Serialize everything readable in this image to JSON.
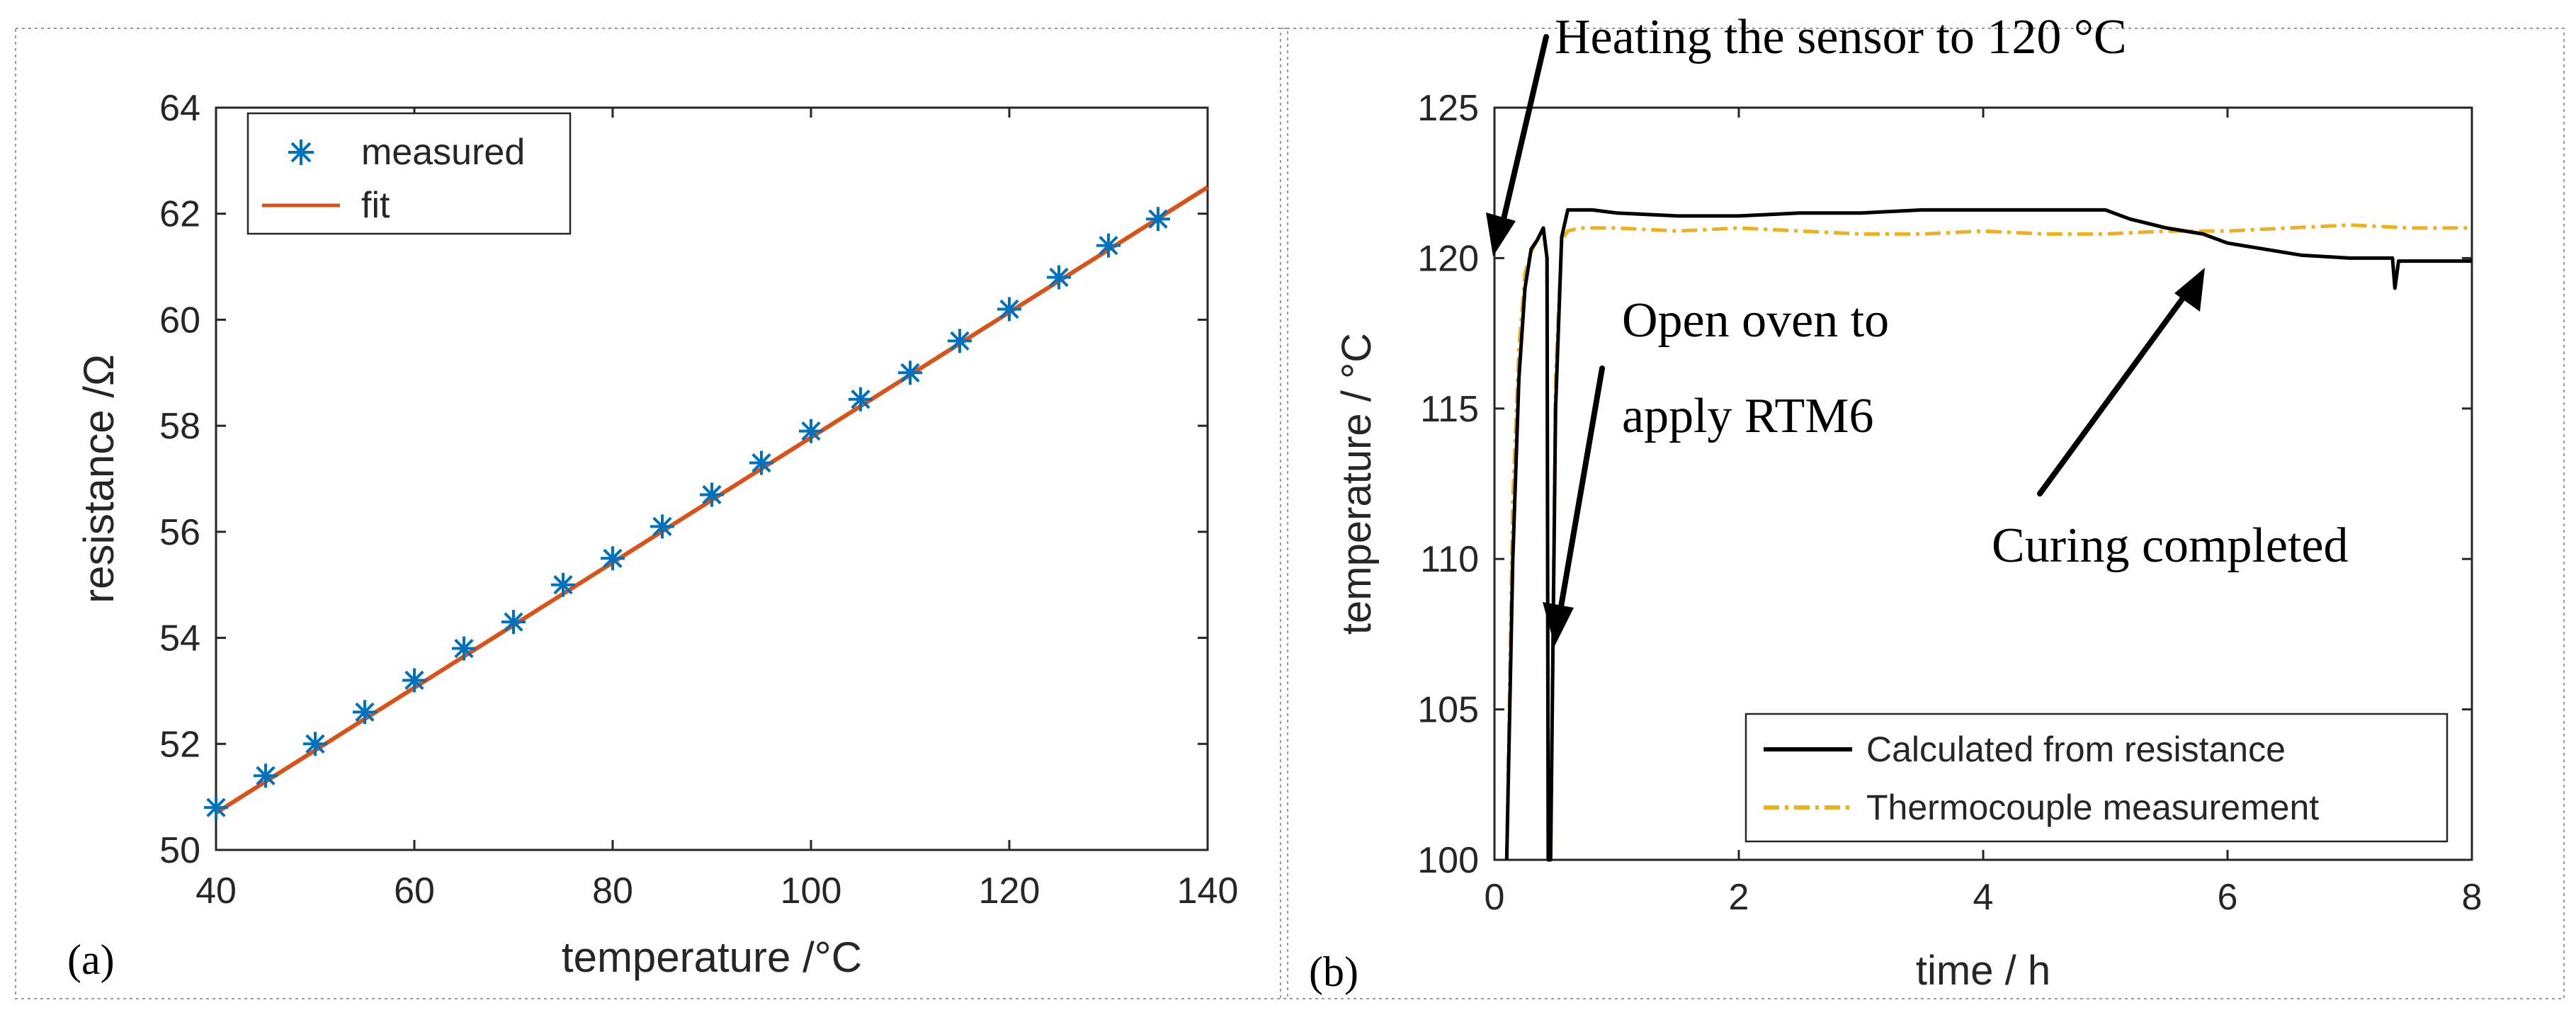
{
  "panel_labels": [
    "(a)",
    "(b)"
  ],
  "chart_data": [
    {
      "type": "scatter",
      "xlabel": "temperature /°C",
      "ylabel": "resistance /Ω",
      "xlim": [
        40,
        140
      ],
      "ylim": [
        50,
        64
      ],
      "xticks": [
        40,
        60,
        80,
        100,
        120,
        140
      ],
      "yticks": [
        50,
        52,
        54,
        56,
        58,
        60,
        62,
        64
      ],
      "grid": false,
      "legend": {
        "placement": "top-left",
        "entries": [
          "measured",
          "fit"
        ]
      },
      "series": [
        {
          "name": "measured",
          "marker": "asterisk",
          "color": "#0072BD",
          "x": [
            40,
            45,
            50,
            55,
            60,
            65,
            70,
            75,
            80,
            85,
            90,
            95,
            100,
            105,
            110,
            115,
            120,
            125,
            130,
            135
          ],
          "y": [
            50.8,
            51.4,
            52.0,
            52.6,
            53.2,
            53.8,
            54.3,
            55.0,
            55.5,
            56.1,
            56.7,
            57.3,
            57.9,
            58.5,
            59.0,
            59.6,
            60.2,
            60.8,
            61.4,
            61.9
          ]
        },
        {
          "name": "fit",
          "style": "line",
          "color": "#D95319",
          "x": [
            40,
            140
          ],
          "y": [
            50.7,
            62.5
          ]
        }
      ]
    },
    {
      "type": "line",
      "xlabel": "time / h",
      "ylabel": "temperature  / °C",
      "xlim": [
        0,
        8
      ],
      "ylim": [
        100,
        125
      ],
      "xticks": [
        0,
        2,
        4,
        6,
        8
      ],
      "yticks": [
        100,
        105,
        110,
        115,
        120,
        125
      ],
      "grid": false,
      "legend": {
        "placement": "bottom-right",
        "entries": [
          "Calculated from resistance",
          "Thermocouple measurement"
        ]
      },
      "series": [
        {
          "name": "Calculated from resistance",
          "style": "solid",
          "color": "#000000",
          "x": [
            0.1,
            0.15,
            0.2,
            0.25,
            0.3,
            0.35,
            0.4,
            0.43,
            0.44,
            0.46,
            0.5,
            0.55,
            0.6,
            0.7,
            0.8,
            1,
            1.5,
            2,
            2.5,
            3,
            3.5,
            4,
            4.5,
            5,
            5.2,
            5.5,
            5.8,
            6,
            6.3,
            6.6,
            7,
            7.2,
            7.35,
            7.37,
            7.4,
            7.6,
            8
          ],
          "y": [
            100,
            110,
            116,
            119,
            120.3,
            120.6,
            121,
            120,
            100,
            100,
            115,
            120.7,
            121.6,
            121.6,
            121.6,
            121.5,
            121.4,
            121.4,
            121.5,
            121.5,
            121.6,
            121.6,
            121.6,
            121.6,
            121.3,
            121,
            120.8,
            120.5,
            120.3,
            120.1,
            120,
            120,
            120,
            119,
            119.9,
            119.9,
            119.9
          ]
        },
        {
          "name": "Thermocouple measurement",
          "style": "dashdot",
          "color": "#EDB120",
          "x": [
            0.1,
            0.15,
            0.2,
            0.25,
            0.3,
            0.35,
            0.4,
            0.43,
            0.44,
            0.46,
            0.5,
            0.55,
            0.6,
            0.7,
            1,
            1.5,
            2,
            2.5,
            3,
            3.5,
            4,
            4.5,
            5,
            5.5,
            6,
            6.5,
            7,
            7.5,
            8
          ],
          "y": [
            100,
            112,
            117,
            119.5,
            120.2,
            120.6,
            120.9,
            120,
            100,
            100,
            116,
            120.6,
            120.9,
            121,
            121,
            120.9,
            121,
            120.9,
            120.8,
            120.8,
            120.9,
            120.8,
            120.8,
            120.9,
            120.9,
            121,
            121.1,
            121,
            121
          ]
        }
      ],
      "annotations": [
        "Heating the sensor to 120 °C",
        "Open oven to",
        "apply RTM6",
        "Curing completed"
      ]
    }
  ]
}
